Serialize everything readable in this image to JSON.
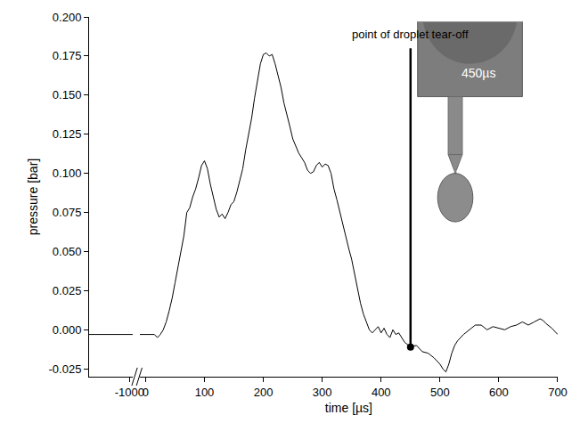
{
  "chart_data": [
    {
      "type": "line",
      "y_label": "pressure [bar]",
      "color": "#000000",
      "x": [
        -1065,
        -995
      ],
      "values": [
        -0.003,
        -0.003
      ],
      "xlim": [
        -1065,
        -995
      ],
      "xticks": [
        -1000
      ],
      "ylim": [
        -0.03,
        0.2
      ],
      "yticks": [
        -0.025,
        {
          "value": 0,
          "label": "0.000"
        },
        0.025,
        {
          "value": 0.05,
          "label": "0.050"
        },
        0.075,
        {
          "value": 0.1,
          "label": "0.100"
        },
        0.125,
        {
          "value": 0.15,
          "label": "0.150"
        },
        0.175,
        {
          "value": 0.2,
          "label": "0.200"
        }
      ]
    },
    {
      "type": "line",
      "x_label": "time [µs]",
      "color": "#000000",
      "tick_labels": "x",
      "x": [
        -10,
        0,
        15,
        20,
        25,
        30,
        35,
        40,
        45,
        50,
        55,
        60,
        65,
        70,
        75,
        80,
        85,
        90,
        95,
        100,
        105,
        110,
        115,
        120,
        125,
        130,
        135,
        140,
        145,
        150,
        155,
        160,
        165,
        170,
        175,
        180,
        185,
        190,
        195,
        200,
        205,
        210,
        215,
        220,
        225,
        230,
        235,
        240,
        245,
        250,
        255,
        260,
        265,
        270,
        275,
        280,
        285,
        290,
        295,
        300,
        305,
        310,
        315,
        320,
        325,
        330,
        335,
        340,
        345,
        350,
        355,
        360,
        365,
        370,
        375,
        380,
        385,
        390,
        395,
        400,
        405,
        410,
        415,
        420,
        425,
        430,
        440,
        450,
        460,
        470,
        480,
        490,
        500,
        505,
        510,
        515,
        520,
        525,
        530,
        540,
        550,
        560,
        570,
        580,
        590,
        600,
        610,
        620,
        630,
        640,
        650,
        660,
        670,
        675,
        680,
        690,
        700
      ],
      "values": [
        -0.003,
        -0.003,
        -0.003,
        -0.005,
        -0.003,
        0.0,
        0.005,
        0.012,
        0.02,
        0.03,
        0.04,
        0.05,
        0.06,
        0.075,
        0.078,
        0.085,
        0.09,
        0.097,
        0.105,
        0.108,
        0.103,
        0.093,
        0.085,
        0.077,
        0.072,
        0.074,
        0.071,
        0.075,
        0.08,
        0.082,
        0.088,
        0.095,
        0.103,
        0.115,
        0.125,
        0.135,
        0.148,
        0.16,
        0.17,
        0.176,
        0.177,
        0.175,
        0.176,
        0.17,
        0.162,
        0.155,
        0.145,
        0.138,
        0.13,
        0.122,
        0.117,
        0.113,
        0.11,
        0.107,
        0.102,
        0.1,
        0.101,
        0.105,
        0.107,
        0.104,
        0.106,
        0.105,
        0.1,
        0.09,
        0.083,
        0.075,
        0.068,
        0.06,
        0.052,
        0.045,
        0.035,
        0.025,
        0.017,
        0.01,
        0.005,
        0.0,
        -0.002,
        0.0,
        0.002,
        -0.002,
        0.001,
        -0.003,
        -0.005,
        0.0,
        -0.003,
        -0.002,
        -0.008,
        -0.011,
        -0.01,
        -0.014,
        -0.015,
        -0.018,
        -0.022,
        -0.025,
        -0.027,
        -0.022,
        -0.015,
        -0.01,
        -0.007,
        -0.003,
        0.0,
        0.003,
        0.003,
        0.0,
        0.002,
        0.001,
        0.0,
        0.002,
        0.003,
        0.005,
        0.003,
        0.005,
        0.007,
        0.006,
        0.004,
        0.001,
        -0.003
      ],
      "xlim": [
        -10,
        700
      ],
      "xticks": [
        0,
        100,
        200,
        300,
        400,
        500,
        600,
        700
      ],
      "ylim": [
        -0.03,
        0.2
      ],
      "annotations": [
        {
          "text": "point of droplet tear-off",
          "x": 450,
          "y": -0.011,
          "line_top": 0.18
        }
      ],
      "inset_label": "450µs"
    }
  ]
}
